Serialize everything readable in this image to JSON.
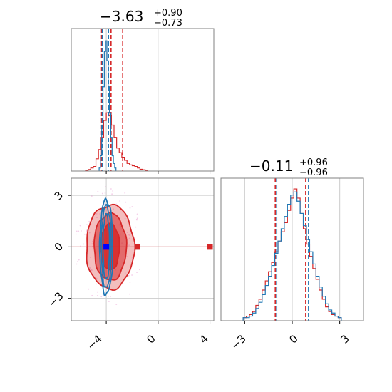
{
  "chart_data": {
    "type": "corner",
    "params": [
      "p0",
      "p1"
    ],
    "colors": {
      "series_a": "#d62728",
      "series_b": "#1f77b4",
      "grid": "#cccccc",
      "frame": "#808080"
    },
    "panels": [
      {
        "id": "p0_hist",
        "type": "histogram",
        "title": {
          "median": "−3.63",
          "plus": "+0.90",
          "minus": "−0.73"
        },
        "xlim": [
          -6.7,
          4.3
        ],
        "grid_x": [
          -4,
          0,
          4
        ],
        "series": [
          {
            "key": "a",
            "color": "#d62728",
            "x": [
              -5.5,
              -5.3,
              -5.1,
              -4.9,
              -4.7,
              -4.5,
              -4.3,
              -4.1,
              -3.9,
              -3.7,
              -3.5,
              -3.3,
              -3.1,
              -2.9,
              -2.7,
              -2.5,
              -2.3,
              -2.1,
              -1.9,
              -1.7,
              -1.5,
              -1.3,
              -1.1,
              -0.9
            ],
            "y": [
              0.005,
              0.01,
              0.02,
              0.03,
              0.08,
              0.14,
              0.22,
              0.33,
              0.38,
              0.36,
              0.3,
              0.22,
              0.15,
              0.12,
              0.09,
              0.07,
              0.05,
              0.04,
              0.035,
              0.03,
              0.02,
              0.012,
              0.008,
              0.004
            ],
            "quantile_lines": [
              -4.36,
              -3.63,
              -2.73
            ]
          },
          {
            "key": "b",
            "color": "#1f77b4",
            "x": [
              -4.5,
              -4.4,
              -4.3,
              -4.2,
              -4.1,
              -4.0,
              -3.9,
              -3.8,
              -3.7,
              -3.6,
              -3.5,
              -3.4,
              -3.3
            ],
            "y": [
              0.02,
              0.1,
              0.3,
              0.55,
              0.78,
              0.85,
              0.72,
              0.55,
              0.38,
              0.22,
              0.1,
              0.05,
              0.02
            ],
            "quantile_lines": [
              -4.3,
              -3.83
            ]
          }
        ],
        "ymax": 0.93
      },
      {
        "id": "p1_hist",
        "type": "histogram",
        "title": {
          "median": "−0.11",
          "plus": "+0.96",
          "minus": "−0.96"
        },
        "xlim": [
          -4.5,
          4.5
        ],
        "xticks": [
          -3,
          0,
          3
        ],
        "xtick_labels": [
          "−3",
          "0",
          "3"
        ],
        "grid_x": [
          -3,
          0,
          3
        ],
        "series": [
          {
            "key": "a",
            "color": "#d62728",
            "x": [
              -3.0,
              -2.8,
              -2.6,
              -2.4,
              -2.2,
              -2.0,
              -1.8,
              -1.6,
              -1.4,
              -1.2,
              -1.0,
              -0.8,
              -0.6,
              -0.4,
              -0.2,
              0.0,
              0.2,
              0.4,
              0.6,
              0.8,
              1.0,
              1.2,
              1.4,
              1.6,
              1.8,
              2.0,
              2.2,
              2.4,
              2.6,
              2.8,
              3.0
            ],
            "y": [
              0.02,
              0.03,
              0.04,
              0.06,
              0.1,
              0.14,
              0.2,
              0.26,
              0.32,
              0.38,
              0.45,
              0.52,
              0.58,
              0.64,
              0.72,
              0.8,
              0.86,
              0.8,
              0.7,
              0.6,
              0.5,
              0.42,
              0.34,
              0.27,
              0.2,
              0.14,
              0.09,
              0.06,
              0.04,
              0.03,
              0.02
            ],
            "quantile_lines": [
              -1.07,
              0.85
            ]
          },
          {
            "key": "b",
            "color": "#1f77b4",
            "x": [
              -3.0,
              -2.8,
              -2.6,
              -2.4,
              -2.2,
              -2.0,
              -1.8,
              -1.6,
              -1.4,
              -1.2,
              -1.0,
              -0.8,
              -0.6,
              -0.4,
              -0.2,
              0.0,
              0.2,
              0.4,
              0.6,
              0.8,
              1.0,
              1.2,
              1.4,
              1.6,
              1.8,
              2.0,
              2.2,
              2.4,
              2.6,
              2.8,
              3.0
            ],
            "y": [
              0.02,
              0.02,
              0.03,
              0.05,
              0.08,
              0.12,
              0.17,
              0.23,
              0.29,
              0.36,
              0.44,
              0.52,
              0.6,
              0.68,
              0.76,
              0.82,
              0.84,
              0.78,
              0.7,
              0.62,
              0.53,
              0.45,
              0.37,
              0.29,
              0.22,
              0.16,
              0.11,
              0.07,
              0.05,
              0.03,
              0.02
            ],
            "quantile_lines": [
              -0.98,
              1.03
            ]
          }
        ],
        "ymax": 0.93
      },
      {
        "id": "p0_p1_2d",
        "type": "contour",
        "xlim": [
          -6.7,
          4.3
        ],
        "ylim": [
          -4.3,
          4.0
        ],
        "xticks": [
          -4,
          0,
          4
        ],
        "xtick_labels": [
          "−4",
          "0",
          "4"
        ],
        "yticks": [
          -3,
          0,
          3
        ],
        "ytick_labels": [
          "−3",
          "0",
          "3"
        ],
        "grid_x": [
          -4,
          0,
          4
        ],
        "grid_y": [
          -3,
          0,
          3
        ],
        "series_a_contours": {
          "center": [
            -3.7,
            0.0
          ],
          "levels": [
            {
              "rx": 0.72,
              "ry": 1.35,
              "opacity": 0.85
            },
            {
              "rx": 1.25,
              "ry": 1.95,
              "opacity": 0.55
            },
            {
              "rx": 1.85,
              "ry": 2.45,
              "opacity": 0.3
            }
          ]
        },
        "series_b_contours": {
          "center": [
            -4.0,
            0.0
          ],
          "levels": [
            {
              "rx": 0.25,
              "ry": 1.9
            },
            {
              "rx": 0.38,
              "ry": 2.4
            },
            {
              "rx": 0.5,
              "ry": 2.75
            }
          ]
        },
        "markers": [
          {
            "color": "#0000ff",
            "x": -4.0,
            "y": 0.0
          },
          {
            "color": "#d62728",
            "x": -1.6,
            "y": 0.0
          },
          {
            "color": "#d62728",
            "x": 4.0,
            "y": 0.0
          }
        ],
        "marker_line_y": 0.0,
        "marker_line_x_end": 4.0
      }
    ]
  }
}
